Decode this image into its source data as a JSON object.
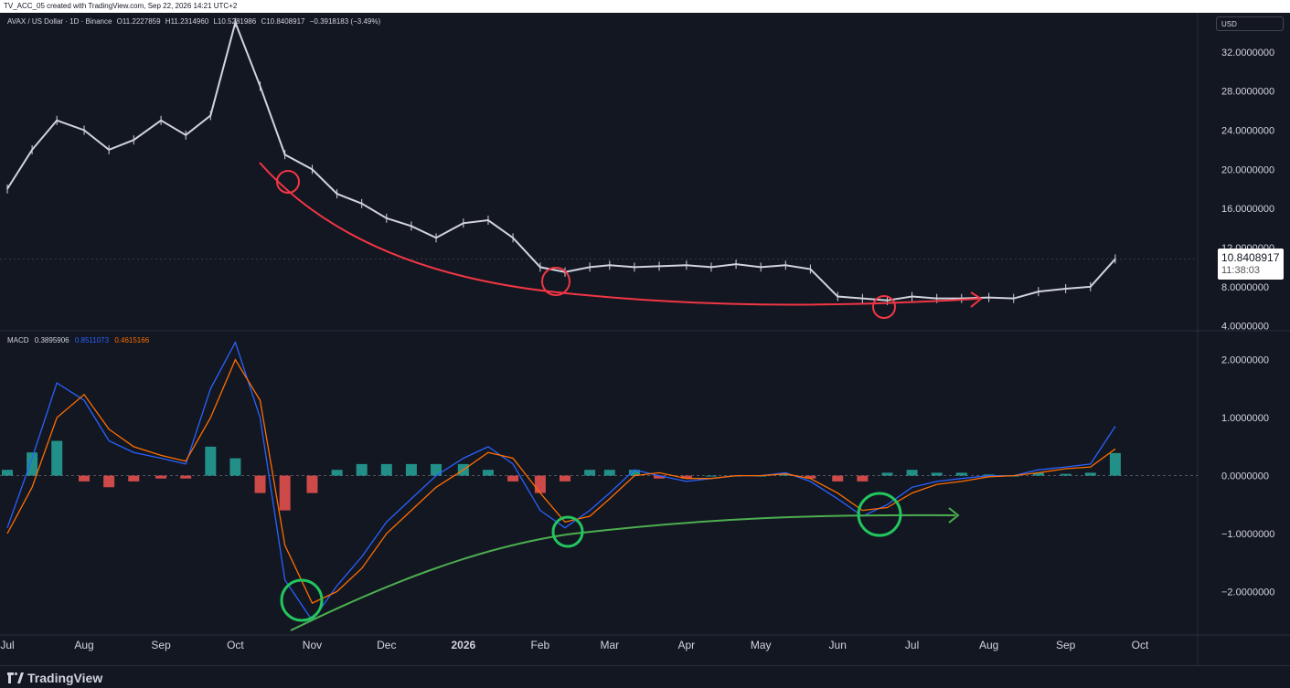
{
  "header": {
    "title": "TV_ACC_05 created with TradingView.com, Sep 22, 2026 14:21 UTC+2"
  },
  "legend": {
    "symbol": "AVAX / US Dollar · 1D · Binance",
    "open": "O11.2227859",
    "high": "H11.2314960",
    "low": "L10.5281986",
    "close": "C10.8408917",
    "change": "−0.3918183 (−3.49%)"
  },
  "price_scale": {
    "currency": "USD",
    "last_price": "10.8408917",
    "countdown": "11:38:03"
  },
  "macd_legend": {
    "label": "MACD",
    "hist": "0.3895906",
    "macd": "0.8511073",
    "signal": "0.4615166"
  },
  "footer": {
    "brand": "TradingView"
  },
  "colors": {
    "background": "#131722",
    "macd_line": "#2962ff",
    "signal_line": "#ff6d00",
    "hist_pos": "#26a69a",
    "hist_neg": "#ef5350",
    "annotation_red": "#f23645",
    "annotation_green": "#22c55e"
  },
  "chart_data": [
    {
      "type": "line",
      "title": "AVAX / US Dollar · 1D · Binance",
      "x": [
        "2025-07-01",
        "2025-07-11",
        "2025-07-21",
        "2025-08-01",
        "2025-08-11",
        "2025-08-21",
        "2025-09-01",
        "2025-09-11",
        "2025-09-21",
        "2025-10-01",
        "2025-10-11",
        "2025-10-21",
        "2025-11-01",
        "2025-11-11",
        "2025-11-21",
        "2025-12-01",
        "2025-12-11",
        "2025-12-21",
        "2026-01-01",
        "2026-01-11",
        "2026-01-21",
        "2026-02-01",
        "2026-02-11",
        "2026-02-21",
        "2026-03-01",
        "2026-03-11",
        "2026-03-21",
        "2026-04-01",
        "2026-04-11",
        "2026-04-21",
        "2026-05-01",
        "2026-05-11",
        "2026-05-21",
        "2026-06-01",
        "2026-06-11",
        "2026-06-21",
        "2026-07-01",
        "2026-07-11",
        "2026-07-21",
        "2026-08-01",
        "2026-08-11",
        "2026-08-21",
        "2026-09-01",
        "2026-09-11",
        "2026-09-21"
      ],
      "series": [
        {
          "values": [
            18.0,
            22.0,
            25.0,
            24.0,
            22.0,
            23.0,
            25.0,
            23.5,
            25.5,
            35.0,
            28.5,
            21.5,
            20.0,
            17.5,
            16.5,
            15.0,
            14.2,
            13.0,
            14.5,
            14.8,
            13.0,
            10.0,
            9.5,
            10.0,
            10.2,
            10.0,
            10.1,
            10.2,
            10.0,
            10.3,
            10.0,
            10.2,
            9.8,
            7.0,
            6.8,
            6.6,
            7.0,
            6.8,
            6.8,
            6.9,
            6.8,
            7.5,
            7.8,
            8.0,
            10.84
          ]
        }
      ],
      "ylim": [
        3.5,
        36.0
      ],
      "yticks": [
        "32.0000000",
        "28.0000000",
        "24.0000000",
        "20.0000000",
        "16.0000000",
        "12.0000000",
        "8.0000000",
        "4.0000000"
      ],
      "ytick_values": [
        32,
        28,
        24,
        20,
        16,
        12,
        8,
        4
      ],
      "last_value": 10.8408917
    },
    {
      "type": "bar",
      "title": "MACD",
      "x": [
        "2025-07-01",
        "2025-07-11",
        "2025-07-21",
        "2025-08-01",
        "2025-08-11",
        "2025-08-21",
        "2025-09-01",
        "2025-09-11",
        "2025-09-21",
        "2025-10-01",
        "2025-10-11",
        "2025-10-21",
        "2025-11-01",
        "2025-11-11",
        "2025-11-21",
        "2025-12-01",
        "2025-12-11",
        "2025-12-21",
        "2026-01-01",
        "2026-01-11",
        "2026-01-21",
        "2026-02-01",
        "2026-02-11",
        "2026-02-21",
        "2026-03-01",
        "2026-03-11",
        "2026-03-21",
        "2026-04-01",
        "2026-04-11",
        "2026-04-21",
        "2026-05-01",
        "2026-05-11",
        "2026-05-21",
        "2026-06-01",
        "2026-06-11",
        "2026-06-21",
        "2026-07-01",
        "2026-07-11",
        "2026-07-21",
        "2026-08-01",
        "2026-08-11",
        "2026-08-21",
        "2026-09-01",
        "2026-09-11",
        "2026-09-21"
      ],
      "series": [
        {
          "name": "MACD",
          "values": [
            -0.9,
            0.3,
            1.6,
            1.3,
            0.6,
            0.4,
            0.3,
            0.2,
            1.5,
            2.3,
            1.0,
            -1.8,
            -2.5,
            -1.9,
            -1.4,
            -0.8,
            -0.4,
            0.0,
            0.3,
            0.5,
            0.2,
            -0.6,
            -0.9,
            -0.6,
            -0.3,
            0.1,
            0.0,
            -0.1,
            -0.05,
            0.0,
            0.0,
            0.05,
            -0.1,
            -0.4,
            -0.7,
            -0.5,
            -0.2,
            -0.1,
            -0.05,
            0.0,
            0.0,
            0.1,
            0.15,
            0.2,
            0.8511073
          ]
        },
        {
          "name": "Signal",
          "values": [
            -1.0,
            -0.2,
            1.0,
            1.4,
            0.8,
            0.5,
            0.35,
            0.25,
            1.0,
            2.0,
            1.3,
            -1.2,
            -2.2,
            -2.0,
            -1.6,
            -1.0,
            -0.6,
            -0.2,
            0.1,
            0.4,
            0.3,
            -0.3,
            -0.8,
            -0.7,
            -0.4,
            0.0,
            0.05,
            -0.05,
            -0.05,
            0.0,
            0.0,
            0.03,
            -0.05,
            -0.3,
            -0.6,
            -0.55,
            -0.3,
            -0.15,
            -0.1,
            -0.02,
            0.0,
            0.05,
            0.12,
            0.15,
            0.4615166
          ]
        },
        {
          "name": "Histogram",
          "values": [
            0.1,
            0.4,
            0.6,
            -0.1,
            -0.2,
            -0.1,
            -0.05,
            -0.05,
            0.5,
            0.3,
            -0.3,
            -0.6,
            -0.3,
            0.1,
            0.2,
            0.2,
            0.2,
            0.2,
            0.2,
            0.1,
            -0.1,
            -0.3,
            -0.1,
            0.1,
            0.1,
            0.1,
            -0.05,
            -0.05,
            0.0,
            0.0,
            0.0,
            0.02,
            -0.05,
            -0.1,
            -0.1,
            0.05,
            0.1,
            0.05,
            0.05,
            0.02,
            0.0,
            0.05,
            0.03,
            0.05,
            0.3895906
          ]
        }
      ],
      "ylim": [
        -2.75,
        2.5
      ],
      "yticks": [
        "2.0000000",
        "1.0000000",
        "0.0000000",
        "−1.0000000",
        "−2.0000000"
      ],
      "ytick_values": [
        2,
        1,
        0,
        -1,
        -2
      ]
    }
  ],
  "x_axis": {
    "labels": [
      "Jul",
      "Aug",
      "Sep",
      "Oct",
      "Nov",
      "Dec",
      "2026",
      "Feb",
      "Mar",
      "Apr",
      "May",
      "Jun",
      "Jul",
      "Aug",
      "Sep",
      "Oct"
    ],
    "dates": [
      "2025-07-01",
      "2025-08-01",
      "2025-09-01",
      "2025-10-01",
      "2025-11-01",
      "2025-12-01",
      "2026-01-01",
      "2026-02-01",
      "2026-03-01",
      "2026-04-01",
      "2026-05-01",
      "2026-06-01",
      "2026-07-01",
      "2026-08-01",
      "2026-09-01",
      "2026-10-01"
    ]
  }
}
